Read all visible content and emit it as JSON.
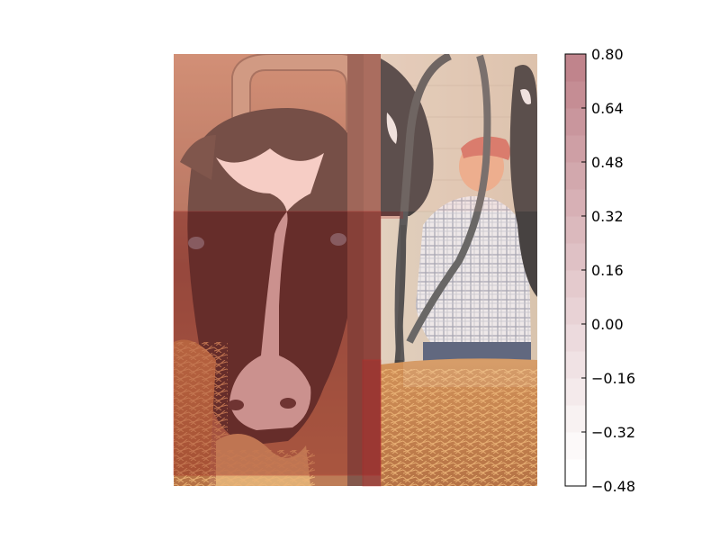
{
  "image": {
    "description_name": "saliency-overlay-cow-barn-photo"
  },
  "colorbar": {
    "ticks": [
      "0.80",
      "0.64",
      "0.48",
      "0.32",
      "0.16",
      "0.00",
      "−0.16",
      "−0.32",
      "−0.48"
    ],
    "min": -0.48,
    "max": 0.8,
    "levels": 16,
    "color_low": "#ffffff",
    "color_high": "#c0848c"
  },
  "overlay": {
    "strong_color": "#8b1a1a",
    "weak_color": "#ffe8e8",
    "regions": [
      {
        "name": "cow-face-lower-region",
        "value": 0.64
      },
      {
        "name": "cow-forehead-region",
        "value": 0.32
      },
      {
        "name": "center-post-region",
        "value": 0.48
      },
      {
        "name": "farmer-region",
        "value": 0.0
      },
      {
        "name": "straw-right-region",
        "value": -0.16
      }
    ]
  }
}
